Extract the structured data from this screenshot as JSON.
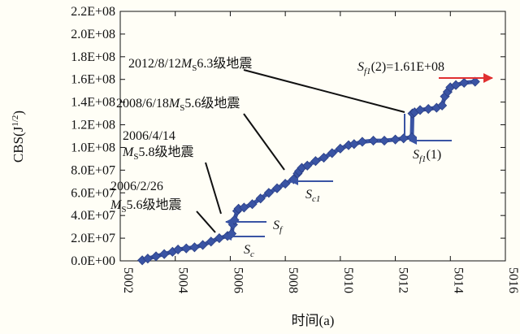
{
  "chart_data": {
    "type": "scatter",
    "xlabel": "时间(a)",
    "ylabel": "CBS(J",
    "ylabel_sup": "1/2",
    "ylabel_close": ")",
    "xlim": [
      5002,
      5016
    ],
    "ylim": [
      0,
      220000000
    ],
    "x_ticks": [
      5002,
      5004,
      5006,
      5008,
      5010,
      5012,
      5014,
      5016
    ],
    "x_tick_labels": [
      "5002",
      "5004",
      "5006",
      "5008",
      "5010",
      "5012",
      "5014",
      "5016"
    ],
    "y_ticks": [
      0,
      20000000,
      40000000,
      60000000,
      80000000,
      100000000,
      120000000,
      140000000,
      160000000,
      180000000,
      200000000,
      220000000
    ],
    "y_tick_labels": [
      "0.0E+00",
      "2.0E+07",
      "4.0E+07",
      "6.0E+07",
      "8.0E+07",
      "1.0E+08",
      "1.2E+08",
      "1.4E+08",
      "1.6E+08",
      "1.8E+08",
      "2.0E+08",
      "2.2E+08"
    ],
    "grid": false,
    "series": [
      {
        "color": "#3a54a4",
        "x": [
          5002.8,
          5003.0,
          5003.3,
          5003.6,
          5003.9,
          5004.1,
          5004.4,
          5004.7,
          5005.0,
          5005.3,
          5005.6,
          5005.9,
          5006.05,
          5006.1,
          5006.15,
          5006.25,
          5006.3,
          5006.5,
          5006.8,
          5007.1,
          5007.4,
          5007.7,
          5008.0,
          5008.3,
          5008.45,
          5008.5,
          5008.6,
          5008.8,
          5009.1,
          5009.4,
          5009.7,
          5010.0,
          5010.3,
          5010.5,
          5010.8,
          5011.2,
          5011.6,
          5012.0,
          5012.3,
          5012.6,
          5012.62,
          5012.7,
          5012.9,
          5013.2,
          5013.5,
          5013.7,
          5013.8,
          5013.9,
          5014.0,
          5014.2,
          5014.5,
          5014.9
        ],
        "y": [
          500000.0,
          2000000.0,
          4000000.0,
          6000000.0,
          8000000.0,
          10000000.0,
          11000000.0,
          12000000.0,
          14000000.0,
          17000000.0,
          20000000.0,
          22000000.0,
          24000000.0,
          32000000.0,
          36000000.0,
          44000000.0,
          46000000.0,
          47000000.0,
          50000000.0,
          55000000.0,
          60000000.0,
          64000000.0,
          68000000.0,
          72000000.0,
          77000000.0,
          79000000.0,
          82000000.0,
          84000000.0,
          88000000.0,
          91000000.0,
          95000000.0,
          99000000.0,
          102000000.0,
          103000000.0,
          105000000.0,
          106000000.0,
          106000000.0,
          107000000.0,
          108000000.0,
          109000000.0,
          130000000.0,
          131000000.0,
          133000000.0,
          134000000.0,
          135000000.0,
          137000000.0,
          145000000.0,
          149000000.0,
          153000000.0,
          155000000.0,
          157000000.0,
          158000000.0
        ]
      }
    ],
    "annotations": {
      "eq_2012": {
        "prefix": "2012/8/12",
        "m": "M",
        "sub": "S",
        "suffix": "6.3级地震"
      },
      "eq_2008": {
        "prefix": "2008/6/18",
        "m": "M",
        "sub": "S",
        "suffix": "5.6级地震"
      },
      "eq_2006_04_date": "2006/4/14",
      "eq_2006_04": {
        "m": "M",
        "sub": "S",
        "suffix": "5.8级地震"
      },
      "eq_2006_02_date": "2006/2/26",
      "eq_2006_02": {
        "m": "M",
        "sub": "S",
        "suffix": "5.6级地震"
      },
      "sf1_2": {
        "s": "S",
        "sub": "f1",
        "suffix": "(2)=1.61E+08"
      },
      "sf1_1": {
        "s": "S",
        "sub": "f1",
        "suffix": "(1)"
      },
      "sc1": {
        "s": "S",
        "sub": "c1"
      },
      "sf": {
        "s": "S",
        "sub": "f"
      },
      "sc": {
        "s": "S",
        "sub": "c"
      }
    },
    "colors": {
      "marker": "#3a54a4",
      "arrow_blue": "#3a54a4",
      "arrow_red": "#e03030",
      "leader": "#111111"
    }
  }
}
